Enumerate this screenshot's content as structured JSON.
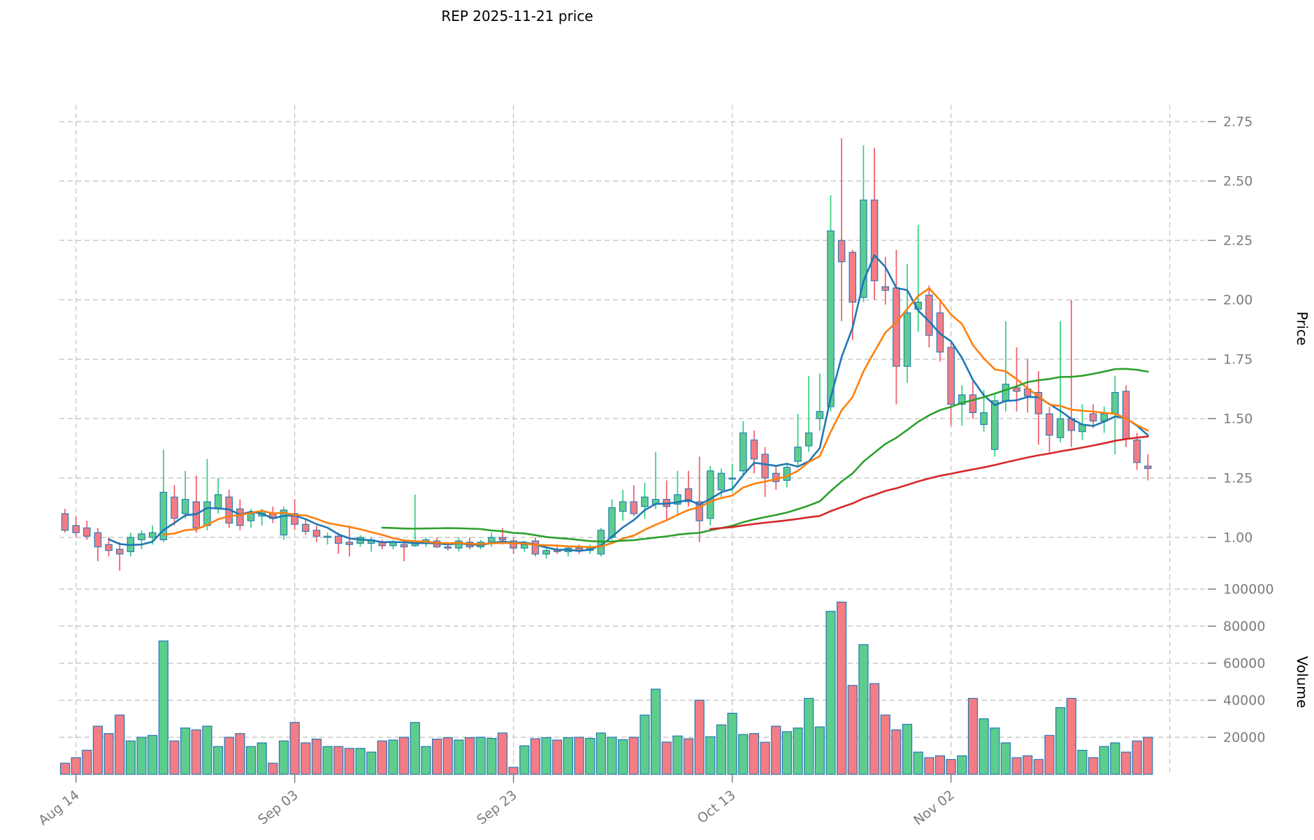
{
  "title": "REP  2025-11-21  price",
  "chart_data": {
    "type": "candlestick_with_volume",
    "title": "REP  2025-11-21  price",
    "price_axis": {
      "label": "Price",
      "ticks": [
        2.75,
        2.5,
        2.25,
        2.0,
        1.75,
        1.5,
        1.25,
        1.0
      ],
      "range": [
        0.82,
        2.85
      ],
      "side": "right"
    },
    "volume_axis": {
      "label": "Volume",
      "ticks": [
        100000,
        80000,
        60000,
        40000,
        20000
      ],
      "range": [
        0,
        100000
      ],
      "side": "right"
    },
    "x_ticks": [
      "Aug 14",
      "Sep 03",
      "Sep 23",
      "Oct 13",
      "Nov 02"
    ],
    "x_tick_indices": [
      1,
      21,
      41,
      61,
      81
    ],
    "extra_grid_index": 101,
    "grid": "dashed",
    "colors": {
      "up_fill": "#5ccd8d",
      "down_fill": "#f47c84",
      "up_wick": "#2fd17d",
      "down_wick": "#f25b66",
      "bar_edge": "#2478b4",
      "grid": "#c9c9c9",
      "tick_text": "#7c7c7c",
      "ma_fast": "#1f77b4",
      "ma_mid": "#ff7f0e",
      "ma_slow": "#2ca02c",
      "ma_slowest": "#d62728"
    },
    "moving_averages": [
      {
        "name": "ma-5",
        "window": 5,
        "color": "#1f77b4"
      },
      {
        "name": "ma-10",
        "window": 10,
        "color": "#ff7f0e"
      },
      {
        "name": "ma-30",
        "window": 30,
        "color": "#2ca02c"
      },
      {
        "name": "ma-60",
        "window": 60,
        "color": "#d62728"
      }
    ],
    "candles_format": [
      "open",
      "high",
      "low",
      "close",
      "volume"
    ],
    "candles": [
      [
        1.1,
        1.12,
        1.02,
        1.03,
        6000
      ],
      [
        1.05,
        1.09,
        1.0,
        1.02,
        9000
      ],
      [
        1.04,
        1.07,
        0.99,
        1.005,
        13000
      ],
      [
        1.02,
        1.04,
        0.9,
        0.96,
        26000
      ],
      [
        0.97,
        1.0,
        0.92,
        0.945,
        22000
      ],
      [
        0.95,
        0.98,
        0.86,
        0.93,
        32000
      ],
      [
        0.94,
        1.02,
        0.92,
        1.0,
        18000
      ],
      [
        0.99,
        1.03,
        0.95,
        1.015,
        20000
      ],
      [
        1.0,
        1.05,
        0.97,
        1.02,
        21000
      ],
      [
        0.99,
        1.37,
        0.98,
        1.19,
        72000
      ],
      [
        1.17,
        1.22,
        1.05,
        1.08,
        18000
      ],
      [
        1.1,
        1.28,
        1.08,
        1.16,
        25000
      ],
      [
        1.15,
        1.26,
        1.02,
        1.04,
        24000
      ],
      [
        1.05,
        1.33,
        1.03,
        1.15,
        26000
      ],
      [
        1.12,
        1.25,
        1.1,
        1.18,
        15000
      ],
      [
        1.17,
        1.2,
        1.04,
        1.06,
        20000
      ],
      [
        1.12,
        1.16,
        1.03,
        1.05,
        22000
      ],
      [
        1.07,
        1.12,
        1.04,
        1.1,
        15000
      ],
      [
        1.09,
        1.12,
        1.05,
        1.11,
        17000
      ],
      [
        1.1,
        1.13,
        1.06,
        1.08,
        6000
      ],
      [
        1.01,
        1.13,
        0.99,
        1.115,
        18000
      ],
      [
        1.1,
        1.16,
        1.03,
        1.055,
        28000
      ],
      [
        1.055,
        1.08,
        1.01,
        1.025,
        17000
      ],
      [
        1.03,
        1.05,
        0.98,
        1.005,
        19000
      ],
      [
        1.0,
        1.02,
        0.97,
        1.005,
        15000
      ],
      [
        1.005,
        1.02,
        0.93,
        0.975,
        15000
      ],
      [
        0.98,
        1.05,
        0.92,
        0.97,
        14000
      ],
      [
        0.975,
        1.01,
        0.96,
        1.0,
        14000
      ],
      [
        0.975,
        1.0,
        0.94,
        0.99,
        12000
      ],
      [
        0.98,
        0.99,
        0.95,
        0.965,
        18000
      ],
      [
        0.965,
        0.99,
        0.95,
        0.98,
        18500
      ],
      [
        0.97,
        0.99,
        0.9,
        0.96,
        20000
      ],
      [
        0.965,
        1.18,
        0.96,
        0.985,
        28000
      ],
      [
        0.98,
        1.0,
        0.96,
        0.99,
        15000
      ],
      [
        0.985,
        1.0,
        0.955,
        0.96,
        19000
      ],
      [
        0.96,
        0.98,
        0.945,
        0.955,
        19800
      ],
      [
        0.955,
        1.0,
        0.94,
        0.985,
        18500
      ],
      [
        0.98,
        1.0,
        0.95,
        0.96,
        19800
      ],
      [
        0.96,
        0.99,
        0.95,
        0.98,
        20000
      ],
      [
        0.98,
        1.02,
        0.96,
        1.0,
        19400
      ],
      [
        1.0,
        1.04,
        0.97,
        0.99,
        22300
      ],
      [
        0.985,
        1.0,
        0.93,
        0.955,
        3800
      ],
      [
        0.955,
        0.985,
        0.94,
        0.97,
        15400
      ],
      [
        0.985,
        1.0,
        0.92,
        0.93,
        19200
      ],
      [
        0.93,
        0.96,
        0.91,
        0.945,
        19800
      ],
      [
        0.95,
        0.97,
        0.93,
        0.94,
        18500
      ],
      [
        0.94,
        0.96,
        0.92,
        0.955,
        19800
      ],
      [
        0.955,
        0.97,
        0.93,
        0.945,
        20000
      ],
      [
        0.945,
        0.97,
        0.93,
        0.96,
        19400
      ],
      [
        0.93,
        1.04,
        0.92,
        1.03,
        22300
      ],
      [
        1.0,
        1.16,
        0.99,
        1.125,
        20000
      ],
      [
        1.11,
        1.2,
        1.07,
        1.15,
        18700
      ],
      [
        1.15,
        1.22,
        1.09,
        1.1,
        20000
      ],
      [
        1.13,
        1.23,
        1.08,
        1.17,
        32000
      ],
      [
        1.14,
        1.36,
        1.12,
        1.16,
        46000
      ],
      [
        1.16,
        1.24,
        1.07,
        1.13,
        17400
      ],
      [
        1.14,
        1.28,
        1.1,
        1.18,
        20700
      ],
      [
        1.205,
        1.28,
        1.13,
        1.15,
        19200
      ],
      [
        1.15,
        1.34,
        0.98,
        1.07,
        40000
      ],
      [
        1.08,
        1.3,
        1.05,
        1.28,
        20300
      ],
      [
        1.2,
        1.29,
        1.17,
        1.27,
        26700
      ],
      [
        1.25,
        1.31,
        1.19,
        1.25,
        33000
      ],
      [
        1.28,
        1.49,
        1.26,
        1.44,
        21500
      ],
      [
        1.41,
        1.45,
        1.27,
        1.33,
        22000
      ],
      [
        1.35,
        1.38,
        1.17,
        1.25,
        17300
      ],
      [
        1.27,
        1.3,
        1.2,
        1.235,
        26000
      ],
      [
        1.24,
        1.31,
        1.21,
        1.295,
        23000
      ],
      [
        1.32,
        1.52,
        1.3,
        1.38,
        25000
      ],
      [
        1.385,
        1.68,
        1.36,
        1.44,
        41000
      ],
      [
        1.5,
        1.69,
        1.45,
        1.53,
        25600
      ],
      [
        1.55,
        2.44,
        1.53,
        2.29,
        88000
      ],
      [
        2.25,
        2.68,
        1.91,
        2.16,
        93000
      ],
      [
        2.2,
        2.21,
        1.83,
        1.99,
        48000
      ],
      [
        2.01,
        2.65,
        1.99,
        2.42,
        70000
      ],
      [
        2.42,
        2.64,
        2.0,
        2.08,
        49000
      ],
      [
        2.055,
        2.18,
        1.98,
        2.04,
        32000
      ],
      [
        2.05,
        2.21,
        1.56,
        1.72,
        24000
      ],
      [
        1.72,
        2.15,
        1.65,
        1.945,
        27000
      ],
      [
        1.96,
        2.315,
        1.865,
        1.99,
        12000
      ],
      [
        2.02,
        2.06,
        1.8,
        1.85,
        9000
      ],
      [
        1.945,
        2.0,
        1.74,
        1.78,
        10000
      ],
      [
        1.8,
        1.82,
        1.47,
        1.56,
        8000
      ],
      [
        1.56,
        1.64,
        1.47,
        1.6,
        10000
      ],
      [
        1.6,
        1.66,
        1.5,
        1.525,
        41000
      ],
      [
        1.475,
        1.62,
        1.445,
        1.525,
        30000
      ],
      [
        1.37,
        1.6,
        1.34,
        1.575,
        25000
      ],
      [
        1.575,
        1.91,
        1.53,
        1.645,
        17000
      ],
      [
        1.63,
        1.8,
        1.53,
        1.615,
        9000
      ],
      [
        1.625,
        1.75,
        1.525,
        1.595,
        10000
      ],
      [
        1.61,
        1.7,
        1.39,
        1.52,
        8000
      ],
      [
        1.52,
        1.55,
        1.35,
        1.43,
        21000
      ],
      [
        1.42,
        1.91,
        1.4,
        1.5,
        36000
      ],
      [
        1.5,
        2.0,
        1.38,
        1.45,
        41000
      ],
      [
        1.445,
        1.56,
        1.41,
        1.475,
        13000
      ],
      [
        1.52,
        1.56,
        1.46,
        1.49,
        9000
      ],
      [
        1.49,
        1.55,
        1.44,
        1.52,
        15000
      ],
      [
        1.52,
        1.68,
        1.35,
        1.61,
        17000
      ],
      [
        1.615,
        1.64,
        1.38,
        1.415,
        12000
      ],
      [
        1.41,
        1.44,
        1.285,
        1.315,
        18000
      ],
      [
        1.3,
        1.35,
        1.24,
        1.29,
        20000
      ]
    ]
  }
}
